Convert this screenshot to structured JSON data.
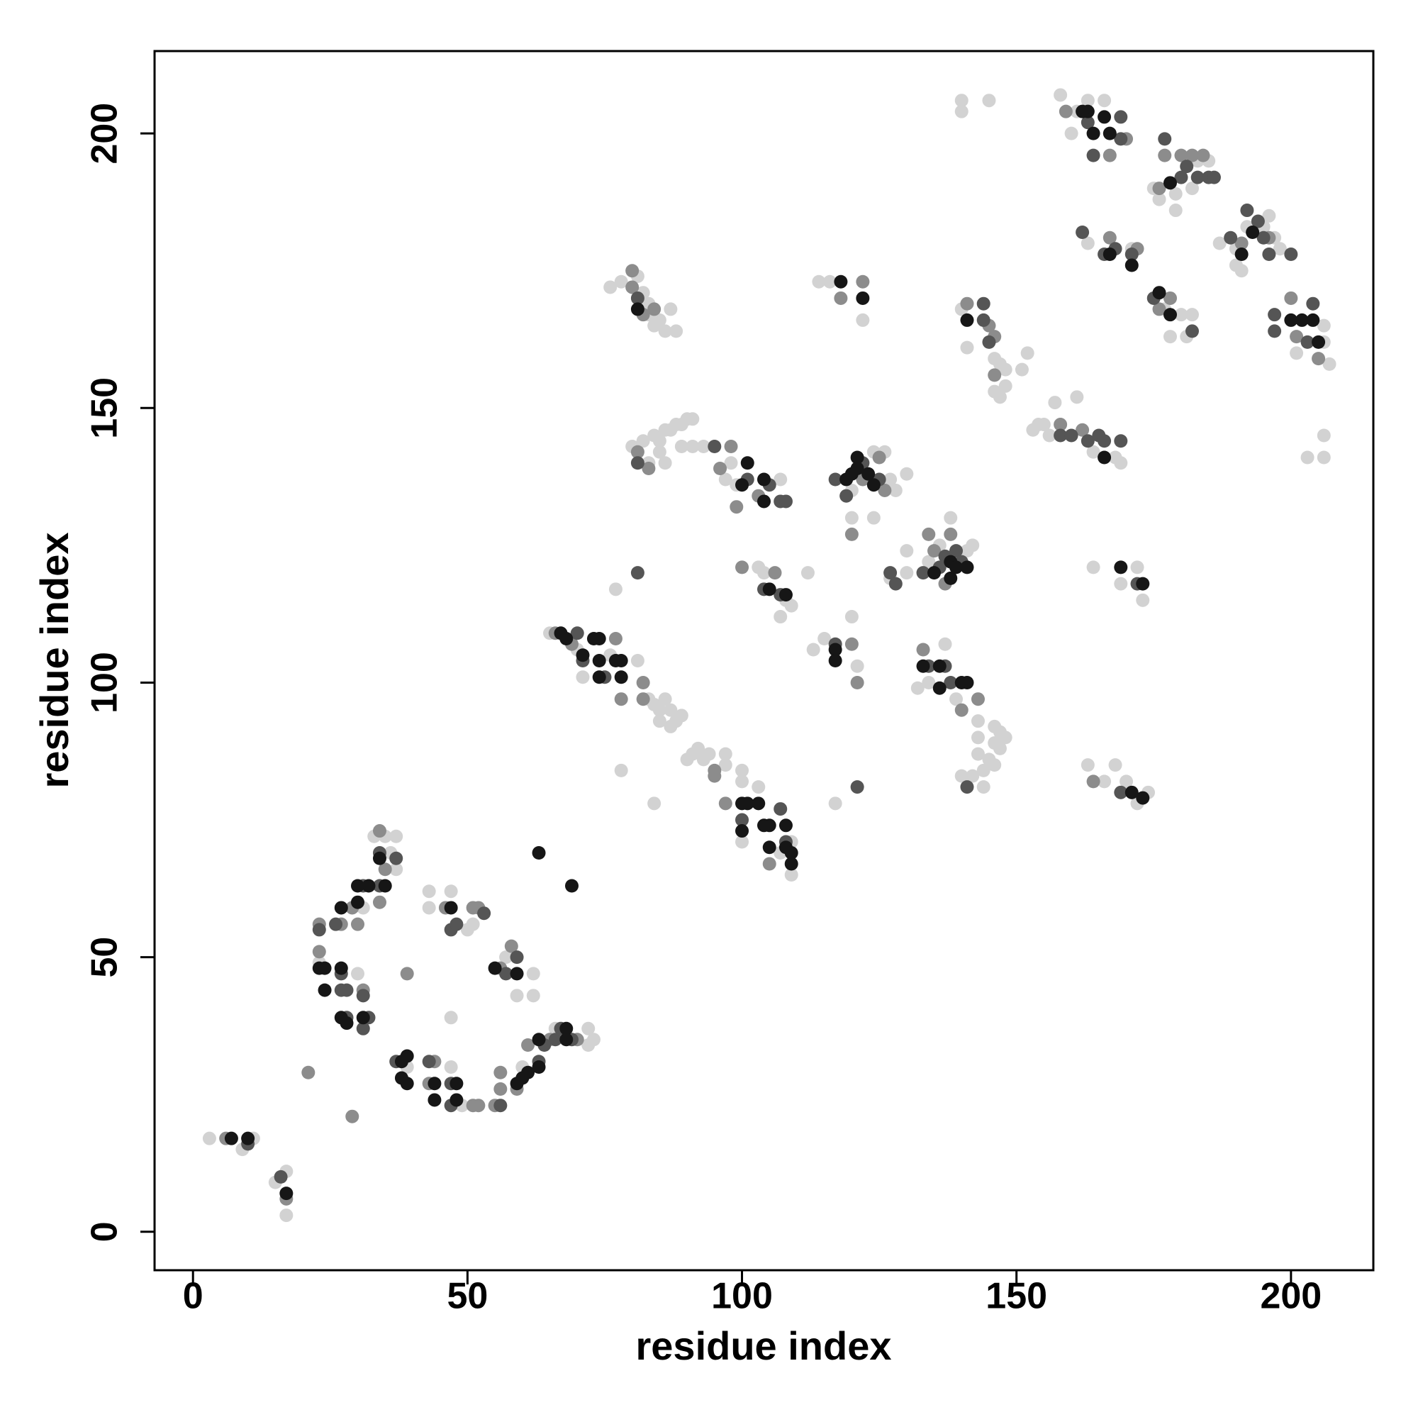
{
  "chart_data": {
    "type": "scatter",
    "xlabel": "residue index",
    "ylabel": "residue index",
    "xlim": [
      -7,
      215
    ],
    "ylim": [
      -7,
      215
    ],
    "xticks": [
      0,
      50,
      100,
      150,
      200
    ],
    "yticks": [
      0,
      50,
      100,
      150,
      200
    ],
    "grid": false,
    "series": [
      {
        "color": "#d2d2d2",
        "x": [
          3,
          9,
          11,
          15,
          17,
          17,
          23,
          30,
          31,
          33,
          35,
          36,
          37,
          37,
          39,
          43,
          43,
          47,
          47,
          47,
          49,
          50,
          51,
          57,
          59,
          60,
          62,
          62,
          66,
          72,
          72,
          73,
          65,
          70,
          71,
          76,
          81,
          83,
          84,
          85,
          85,
          86,
          87,
          87,
          88,
          89,
          90,
          91,
          92,
          93,
          94,
          97,
          97,
          100,
          100,
          78,
          84,
          100,
          103,
          107,
          109,
          109,
          77,
          117,
          76,
          78,
          81,
          82,
          83,
          83,
          84,
          85,
          86,
          87,
          88,
          80,
          82,
          83,
          84,
          85,
          85,
          86,
          87,
          88,
          89,
          90,
          91,
          89,
          91,
          93,
          86,
          97,
          98,
          99,
          107,
          103,
          104,
          107,
          108,
          109,
          112,
          113,
          115,
          120,
          121,
          114,
          116,
          122,
          120,
          120,
          124,
          124,
          126,
          127,
          128,
          130,
          127,
          130,
          130,
          134,
          136,
          138,
          141,
          142,
          132,
          134,
          137,
          139,
          143,
          143,
          143,
          144,
          144,
          142,
          140,
          145,
          146,
          146,
          147,
          147,
          148,
          146,
          140,
          141,
          146,
          147,
          146,
          148,
          148,
          147,
          140,
          140,
          145,
          151,
          152,
          153,
          154,
          155,
          156,
          157,
          161,
          164,
          168,
          169,
          164,
          169,
          172,
          173,
          163,
          166,
          168,
          170,
          172,
          174,
          158,
          160,
          161,
          163,
          166,
          175,
          176,
          179,
          179,
          182,
          183,
          185,
          163,
          171,
          177,
          178,
          180,
          182,
          181,
          187,
          190,
          190,
          191,
          192,
          195,
          196,
          198,
          197,
          201,
          206,
          206,
          207,
          203,
          206,
          206
        ],
        "y": [
          17,
          15,
          17,
          9,
          11,
          3,
          49,
          47,
          59,
          72,
          72,
          69,
          72,
          66,
          30,
          62,
          59,
          62,
          39,
          30,
          23,
          55,
          56,
          50,
          43,
          30,
          47,
          43,
          37,
          37,
          34,
          35,
          109,
          106,
          101,
          105,
          104,
          97,
          96,
          95,
          93,
          97,
          92,
          95,
          93,
          94,
          86,
          87,
          88,
          86,
          87,
          87,
          85,
          84,
          82,
          84,
          78,
          71,
          81,
          69,
          65,
          71,
          117,
          78,
          172,
          173,
          174,
          171,
          169,
          167,
          165,
          166,
          164,
          168,
          164,
          143,
          144,
          140,
          145,
          144,
          142,
          146,
          146,
          147,
          147,
          148,
          148,
          143,
          143,
          143,
          140,
          137,
          140,
          136,
          137,
          121,
          120,
          112,
          115,
          114,
          120,
          106,
          108,
          112,
          103,
          173,
          173,
          166,
          135,
          130,
          142,
          130,
          142,
          137,
          135,
          138,
          119,
          120,
          124,
          122,
          125,
          130,
          124,
          125,
          99,
          100,
          107,
          97,
          93,
          90,
          87,
          84,
          81,
          83,
          83,
          86,
          89,
          85,
          88,
          91,
          90,
          92,
          168,
          161,
          159,
          158,
          153,
          157,
          154,
          152,
          206,
          204,
          206,
          157,
          160,
          146,
          147,
          147,
          145,
          151,
          152,
          142,
          141,
          140,
          121,
          118,
          121,
          115,
          85,
          82,
          85,
          82,
          78,
          80,
          207,
          200,
          204,
          206,
          206,
          190,
          188,
          189,
          186,
          190,
          195,
          195,
          180,
          179,
          168,
          163,
          167,
          167,
          163,
          180,
          176,
          179,
          175,
          183,
          183,
          185,
          179,
          181,
          160,
          165,
          162,
          158,
          141,
          141,
          145
        ]
      },
      {
        "color": "#8c8c8c",
        "x": [
          6,
          17,
          21,
          29,
          23,
          23,
          27,
          29,
          30,
          31,
          34,
          34,
          35,
          39,
          44,
          43,
          46,
          51,
          52,
          51,
          52,
          56,
          55,
          56,
          56,
          58,
          59,
          61,
          65,
          70,
          66,
          69,
          77,
          78,
          82,
          82,
          95,
          95,
          97,
          105,
          80,
          80,
          84,
          82,
          81,
          83,
          96,
          98,
          99,
          103,
          100,
          106,
          120,
          121,
          118,
          122,
          122,
          120,
          125,
          126,
          134,
          135,
          137,
          138,
          133,
          140,
          143,
          141,
          145,
          146,
          146,
          158,
          162,
          164,
          159,
          167,
          170,
          176,
          177,
          180,
          182,
          184,
          167,
          172,
          176,
          178,
          191,
          196,
          200,
          201,
          205
        ],
        "y": [
          17,
          6,
          29,
          21,
          56,
          51,
          56,
          59,
          56,
          44,
          73,
          60,
          66,
          47,
          31,
          27,
          59,
          59,
          59,
          23,
          23,
          48,
          23,
          26,
          29,
          52,
          26,
          34,
          35,
          35,
          109,
          107,
          108,
          97,
          100,
          97,
          84,
          83,
          78,
          67,
          172,
          175,
          168,
          167,
          142,
          139,
          139,
          143,
          132,
          134,
          121,
          120,
          107,
          100,
          170,
          173,
          137,
          127,
          141,
          135,
          127,
          124,
          118,
          127,
          106,
          95,
          97,
          169,
          165,
          163,
          156,
          147,
          146,
          82,
          204,
          196,
          199,
          190,
          196,
          196,
          196,
          196,
          181,
          179,
          168,
          170,
          180,
          181,
          170,
          163,
          159
        ]
      },
      {
        "color": "#555555",
        "x": [
          10,
          16,
          23,
          26,
          27,
          27,
          28,
          28,
          31,
          31,
          31,
          32,
          34,
          34,
          37,
          37,
          43,
          47,
          48,
          47,
          47,
          53,
          56,
          57,
          59,
          63,
          64,
          66,
          67,
          69,
          70,
          71,
          75,
          100,
          107,
          108,
          81,
          121,
          81,
          81,
          95,
          101,
          105,
          107,
          108,
          104,
          107,
          117,
          117,
          119,
          122,
          125,
          127,
          128,
          133,
          136,
          137,
          139,
          140,
          134,
          137,
          138,
          141,
          144,
          144,
          145,
          158,
          160,
          163,
          165,
          166,
          169,
          172,
          169,
          163,
          164,
          169,
          169,
          177,
          180,
          181,
          183,
          185,
          186,
          162,
          166,
          168,
          171,
          175,
          182,
          189,
          192,
          194,
          195,
          196,
          200,
          197,
          197,
          203,
          204
        ],
        "y": [
          16,
          10,
          55,
          56,
          47,
          44,
          44,
          39,
          63,
          43,
          37,
          39,
          69,
          63,
          68,
          31,
          31,
          55,
          56,
          27,
          23,
          58,
          23,
          47,
          50,
          31,
          34,
          35,
          37,
          35,
          109,
          104,
          101,
          75,
          77,
          71,
          120,
          81,
          170,
          140,
          143,
          137,
          136,
          133,
          133,
          117,
          116,
          107,
          137,
          134,
          140,
          137,
          120,
          118,
          120,
          121,
          123,
          124,
          122,
          103,
          103,
          100,
          81,
          169,
          166,
          162,
          145,
          145,
          144,
          145,
          144,
          144,
          118,
          80,
          202,
          196,
          199,
          203,
          199,
          192,
          194,
          192,
          192,
          192,
          182,
          178,
          179,
          178,
          170,
          164,
          181,
          186,
          184,
          181,
          178,
          178,
          164,
          167,
          162,
          169
        ]
      },
      {
        "color": "#161616",
        "x": [
          7,
          10,
          17,
          23,
          24,
          24,
          27,
          27,
          27,
          28,
          30,
          30,
          31,
          32,
          34,
          35,
          38,
          39,
          38,
          39,
          44,
          44,
          47,
          48,
          48,
          55,
          59,
          59,
          60,
          61,
          63,
          63,
          68,
          68,
          63,
          69,
          67,
          68,
          71,
          73,
          74,
          74,
          74,
          77,
          78,
          78,
          100,
          101,
          100,
          103,
          104,
          105,
          105,
          108,
          108,
          109,
          109,
          81,
          100,
          101,
          104,
          104,
          105,
          108,
          117,
          117,
          118,
          122,
          119,
          120,
          121,
          121,
          123,
          124,
          135,
          138,
          138,
          139,
          141,
          133,
          136,
          136,
          140,
          141,
          141,
          166,
          169,
          173,
          171,
          173,
          163,
          164,
          166,
          167,
          162,
          178,
          167,
          171,
          176,
          178,
          191,
          193,
          200,
          202,
          204,
          205
        ],
        "y": [
          17,
          17,
          7,
          48,
          48,
          44,
          59,
          48,
          39,
          38,
          63,
          60,
          39,
          63,
          68,
          63,
          31,
          32,
          28,
          27,
          24,
          27,
          59,
          27,
          24,
          48,
          47,
          27,
          28,
          29,
          30,
          35,
          37,
          35,
          69,
          63,
          109,
          108,
          105,
          108,
          108,
          104,
          101,
          104,
          104,
          101,
          78,
          78,
          73,
          78,
          74,
          74,
          70,
          74,
          70,
          69,
          67,
          168,
          136,
          140,
          137,
          133,
          117,
          116,
          106,
          104,
          173,
          170,
          137,
          138,
          141,
          139,
          138,
          136,
          120,
          122,
          119,
          121,
          121,
          103,
          103,
          99,
          100,
          100,
          166,
          141,
          121,
          118,
          80,
          79,
          204,
          200,
          203,
          200,
          204,
          191,
          178,
          176,
          171,
          167,
          178,
          182,
          166,
          166,
          166,
          162
        ]
      }
    ]
  }
}
